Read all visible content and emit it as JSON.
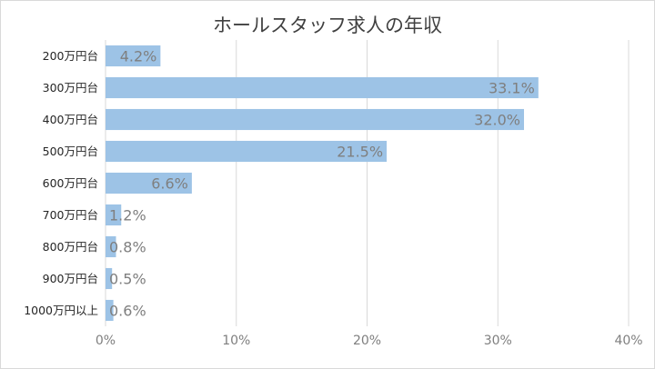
{
  "chart_data": {
    "type": "bar",
    "orientation": "horizontal",
    "title": "ホールスタッフ求人の年収",
    "categories": [
      "200万円台",
      "300万円台",
      "400万円台",
      "500万円台",
      "600万円台",
      "700万円台",
      "800万円台",
      "900万円台",
      "1000万円以上"
    ],
    "values": [
      4.2,
      33.1,
      32.0,
      21.5,
      6.6,
      1.2,
      0.8,
      0.5,
      0.6
    ],
    "data_labels": [
      "4.2%",
      "33.1%",
      "32.0%",
      "21.5%",
      "6.6%",
      "1.2%",
      "0.8%",
      "0.5%",
      "0.6%"
    ],
    "x_ticks": [
      "0%",
      "10%",
      "20%",
      "30%",
      "40%"
    ],
    "xlim": [
      0,
      40
    ],
    "xlabel": "",
    "ylabel": "",
    "grid": true,
    "legend": "none",
    "colors": {
      "bar": "#9dc3e6",
      "grid": "#d9d9d9",
      "label": "#7f7f7f",
      "title": "#404040"
    }
  }
}
